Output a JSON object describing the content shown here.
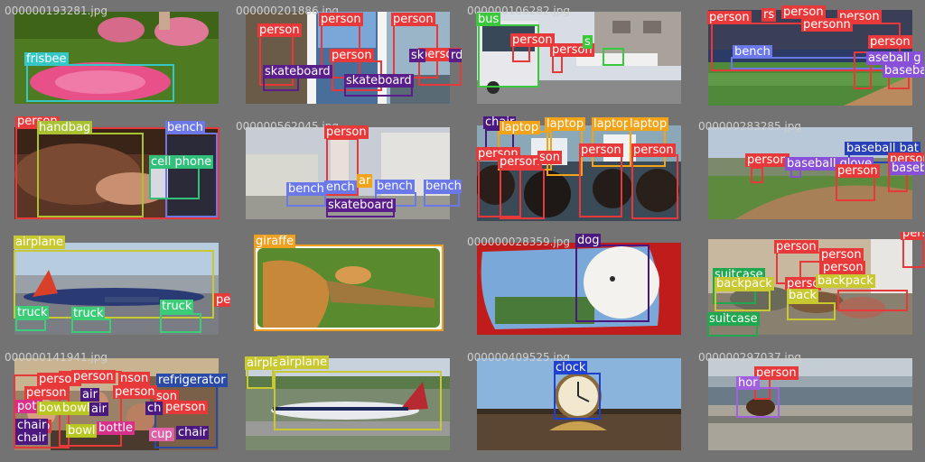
{
  "colors": {
    "person": "#e8393a",
    "frisbee": "#36c6c6",
    "skateboard": "#5a1e8a",
    "bus": "#3cc83c",
    "bench": "#6a78e8",
    "handbag": "#a9c232",
    "cell phone": "#30c07a",
    "chair": "#4b1880",
    "laptop": "#f2a318",
    "baseball bat": "#2840b8",
    "baseball glove": "#8850d8",
    "airplane": "#c8c830",
    "truck": "#3ccc78",
    "giraffe": "#f0a020",
    "dog": "#4b1880",
    "suitcase": "#20a850",
    "backpack": "#c8c830",
    "refrigerator": "#2a4aa8",
    "bowl": "#b8c820",
    "bottle": "#d8308a",
    "cup": "#e060a8",
    "clock": "#2040d0",
    "horse": "#a060e0"
  },
  "tiles": [
    {
      "filename": "000000193281.jpg",
      "detections": [
        {
          "label": "frisbee"
        }
      ]
    },
    {
      "filename": "000000201886.jpg",
      "detections": [
        {
          "label": "person"
        },
        {
          "label": "person"
        },
        {
          "label": "person"
        },
        {
          "label": "person"
        },
        {
          "label": "person"
        },
        {
          "label": "skateboard"
        },
        {
          "label": "skateboard"
        },
        {
          "label": "sk"
        },
        {
          "label": "rd"
        }
      ]
    },
    {
      "filename": "000000106282.jpg",
      "detections": [
        {
          "label": "bus"
        },
        {
          "label": "person"
        },
        {
          "label": "person"
        },
        {
          "label": "s"
        },
        {
          "label": ""
        }
      ]
    },
    {
      "filename": "",
      "detections": [
        {
          "label": "person"
        },
        {
          "label": "rs"
        },
        {
          "label": "person"
        },
        {
          "label": "person"
        },
        {
          "label": "personn"
        },
        {
          "label": "person"
        },
        {
          "label": "bench"
        },
        {
          "label": "person"
        },
        {
          "label": "aseball g"
        },
        {
          "label": "baseball"
        }
      ]
    },
    {
      "filename": "",
      "detections": [
        {
          "label": "person"
        },
        {
          "label": "handbag"
        },
        {
          "label": "bench"
        },
        {
          "label": "cell phone"
        }
      ]
    },
    {
      "filename": "000000562045.jpg",
      "detections": [
        {
          "label": "person"
        },
        {
          "label": "bench"
        },
        {
          "label": "ench"
        },
        {
          "label": "ar"
        },
        {
          "label": "bench"
        },
        {
          "label": "bench"
        },
        {
          "label": "skateboard"
        }
      ]
    },
    {
      "filename": "",
      "detections": [
        {
          "label": "chair"
        },
        {
          "label": "laptop"
        },
        {
          "label": "laptop"
        },
        {
          "label": "laptop"
        },
        {
          "label": "laptop"
        },
        {
          "label": "person"
        },
        {
          "label": "person"
        },
        {
          "label": "person"
        },
        {
          "label": "person"
        },
        {
          "label": "son"
        }
      ]
    },
    {
      "filename": "000000283285.jpg",
      "detections": [
        {
          "label": "baseball bat"
        },
        {
          "label": "person"
        },
        {
          "label": "baseball glove"
        },
        {
          "label": "person"
        },
        {
          "label": "person"
        },
        {
          "label": "baseb"
        }
      ]
    },
    {
      "filename": "",
      "detections": [
        {
          "label": "airplane"
        },
        {
          "label": "truck"
        },
        {
          "label": "truck"
        },
        {
          "label": "truck"
        }
      ]
    },
    {
      "filename": "",
      "detections": [
        {
          "label": "giraffe"
        }
      ]
    },
    {
      "filename": "000000028359.jpg",
      "detections": [
        {
          "label": "dog"
        }
      ]
    },
    {
      "filename": "",
      "detections": [
        {
          "label": "person"
        },
        {
          "label": "person"
        },
        {
          "label": "suitcase"
        },
        {
          "label": "person"
        },
        {
          "label": "backpack"
        },
        {
          "label": "perso"
        },
        {
          "label": "backpack"
        },
        {
          "label": "back"
        },
        {
          "label": "suitcase"
        },
        {
          "label": "pers"
        }
      ]
    },
    {
      "filename": "000000141941.jpg",
      "detections": [
        {
          "label": "person"
        },
        {
          "label": "person"
        },
        {
          "label": "refrigerator"
        },
        {
          "label": "person"
        },
        {
          "label": "person"
        },
        {
          "label": "bowl"
        },
        {
          "label": "bowl"
        },
        {
          "label": "person"
        },
        {
          "label": "chair"
        },
        {
          "label": "chair"
        },
        {
          "label": "bottle"
        },
        {
          "label": "bowl"
        },
        {
          "label": "cup"
        },
        {
          "label": "chair"
        },
        {
          "label": "air"
        },
        {
          "label": "air"
        },
        {
          "label": "ch"
        },
        {
          "label": "perso"
        },
        {
          "label": "nson"
        },
        {
          "label": "son"
        },
        {
          "label": "pott"
        }
      ]
    },
    {
      "filename": "",
      "detections": [
        {
          "label": "airpla"
        },
        {
          "label": "airplane"
        }
      ]
    },
    {
      "filename": "000000409525.jpg",
      "detections": [
        {
          "label": "clock"
        }
      ]
    },
    {
      "filename": "000000297037.jpg",
      "detections": [
        {
          "label": "person"
        },
        {
          "label": "hor"
        }
      ]
    }
  ]
}
